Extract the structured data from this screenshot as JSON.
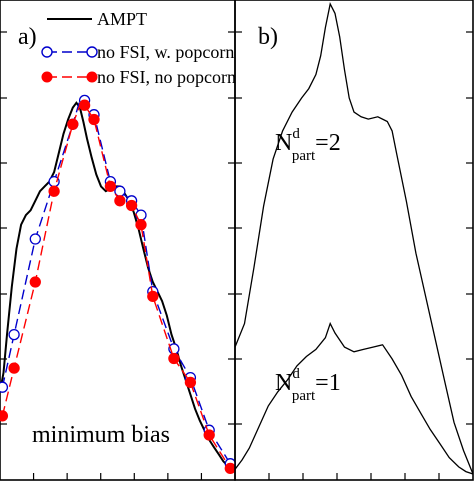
{
  "chart_data": [
    {
      "type": "line",
      "panel_label": "a)",
      "annotation": "minimum bias",
      "grid": false,
      "legend_placement": "top-right",
      "xlim": [
        0,
        100
      ],
      "ylim": [
        0,
        100
      ],
      "series": [
        {
          "name": "AMPT",
          "color": "#000000",
          "style": "solid",
          "marker": "none",
          "x": [
            0.0,
            1.5,
            3.0,
            5.0,
            7.0,
            9.0,
            11.0,
            13.0,
            15.0,
            17.0,
            19.0,
            21.0,
            23.0,
            25.0,
            27.0,
            29.0,
            31.0,
            32.5,
            34.0,
            35.5,
            37.0,
            39.0,
            41.0,
            43.0,
            45.0,
            47.0,
            49.0,
            51.0,
            53.0,
            55.0,
            57.0,
            59.0,
            61.0,
            63.0,
            65.0,
            67.0,
            69.0,
            71.0,
            73.0,
            75.0,
            77.0,
            79.0,
            81.0,
            83.0,
            85.0,
            87.0,
            89.0,
            91.0,
            93.0,
            95.0,
            97.0,
            99.0
          ],
          "y": [
            18.0,
            22.0,
            30.0,
            40.0,
            48.0,
            53.0,
            55.0,
            56.0,
            58.0,
            60.0,
            61.0,
            62.0,
            64.0,
            68.0,
            72.0,
            75.0,
            77.5,
            78.5,
            77.5,
            74.5,
            71.0,
            67.0,
            63.5,
            61.0,
            60.0,
            60.5,
            61.0,
            61.0,
            59.5,
            58.0,
            55.5,
            52.0,
            48.0,
            44.0,
            41.0,
            39.0,
            37.0,
            34.0,
            30.0,
            27.0,
            23.5,
            20.5,
            17.5,
            14.5,
            12.0,
            10.0,
            8.0,
            6.5,
            5.0,
            3.5,
            2.5,
            1.5
          ]
        },
        {
          "name": "no FSI, w. popcorn",
          "color": "#0000cc",
          "style": "dashed",
          "marker": "open-circle",
          "x": [
            1.0,
            6.0,
            15.0,
            23.0,
            31.0,
            36.0,
            40.0,
            47.0,
            51.0,
            56.0,
            60.0,
            65.0,
            74.0,
            81.0,
            89.0,
            98.0
          ],
          "y": [
            19.0,
            30.0,
            50.0,
            62.0,
            74.0,
            79.0,
            76.0,
            62.0,
            60.0,
            58.0,
            55.0,
            39.0,
            27.0,
            21.0,
            10.0,
            3.0
          ],
          "line_x": [
            1.0,
            6.0,
            15.0,
            23.0,
            31.0,
            34.0,
            36.0,
            40.0,
            47.0,
            51.0,
            56.0,
            60.0,
            65.0,
            74.0,
            81.0,
            89.0,
            98.0
          ],
          "line_y": [
            19.0,
            30.0,
            50.0,
            62.0,
            74.0,
            79.0,
            79.0,
            76.0,
            62.0,
            60.0,
            58.0,
            55.0,
            39.0,
            27.0,
            21.0,
            10.0,
            3.0
          ]
        },
        {
          "name": "no FSI, no popcorn",
          "color": "#ff0000",
          "style": "dashed",
          "marker": "filled-circle",
          "x": [
            1.0,
            6.0,
            15.0,
            23.0,
            31.0,
            36.0,
            40.0,
            47.0,
            51.0,
            56.0,
            60.0,
            65.0,
            74.0,
            81.0,
            89.0,
            98.0
          ],
          "y": [
            13.0,
            23.0,
            41.0,
            60.0,
            74.0,
            78.0,
            75.0,
            61.0,
            58.0,
            57.0,
            53.0,
            38.0,
            25.0,
            20.0,
            9.0,
            2.0
          ],
          "line_x": [
            1.0,
            6.0,
            15.0,
            23.0,
            31.0,
            34.0,
            36.0,
            40.0,
            47.0,
            51.0,
            56.0,
            60.0,
            65.0,
            74.0,
            81.0,
            89.0,
            98.0
          ],
          "line_y": [
            13.0,
            23.0,
            41.0,
            60.0,
            74.0,
            78.0,
            78.0,
            75.0,
            61.0,
            58.0,
            57.0,
            53.0,
            38.0,
            25.0,
            20.0,
            9.0,
            2.0
          ]
        }
      ]
    },
    {
      "type": "line",
      "panel_label": "b)",
      "grid": false,
      "xlim": [
        0,
        100
      ],
      "ylim": [
        0,
        100
      ],
      "series": [
        {
          "name": "",
          "label_main": "N",
          "label_sup": "d",
          "label_sub": "part",
          "label_eq": "=2",
          "color": "#000000",
          "style": "solid",
          "x": [
            0.0,
            4.0,
            8.0,
            12.0,
            16.0,
            20.0,
            24.0,
            28.0,
            31.0,
            34.0,
            36.0,
            38.0,
            40.0,
            42.0,
            44.0,
            46.0,
            48.0,
            50.0,
            53.0,
            56.0,
            60.0,
            64.0,
            66.0,
            68.0,
            72.0,
            76.0,
            80.0,
            84.0,
            88.0,
            92.0,
            96.0,
            100.0
          ],
          "y": [
            27.0,
            32.0,
            44.0,
            57.0,
            67.0,
            73.0,
            77.0,
            80.0,
            82.0,
            85.0,
            89.0,
            95.0,
            100.0,
            98.0,
            93.0,
            86.0,
            80.0,
            77.0,
            76.0,
            75.5,
            76.0,
            75.0,
            73.0,
            68.0,
            58.0,
            47.0,
            38.0,
            29.0,
            20.0,
            11.0,
            5.0,
            0.0
          ]
        },
        {
          "name": "",
          "label_main": "N",
          "label_sup": "d",
          "label_sub": "part",
          "label_eq": "=1",
          "color": "#000000",
          "style": "solid",
          "x": [
            0.0,
            3.0,
            6.0,
            10.0,
            14.0,
            18.0,
            22.0,
            26.0,
            30.0,
            34.0,
            38.0,
            40.0,
            42.0,
            46.0,
            50.0,
            54.0,
            58.0,
            62.0,
            66.0,
            70.0,
            74.0,
            78.0,
            82.0,
            86.0,
            90.0,
            94.0,
            97.0,
            100.0
          ],
          "y": [
            1.0,
            3.0,
            5.5,
            10.0,
            14.5,
            17.5,
            20.0,
            23.0,
            25.0,
            26.5,
            29.0,
            32.0,
            30.0,
            27.0,
            26.0,
            26.5,
            27.0,
            27.5,
            24.5,
            21.0,
            16.5,
            13.0,
            9.5,
            6.5,
            3.5,
            1.5,
            0.5,
            0.0
          ]
        }
      ]
    }
  ]
}
